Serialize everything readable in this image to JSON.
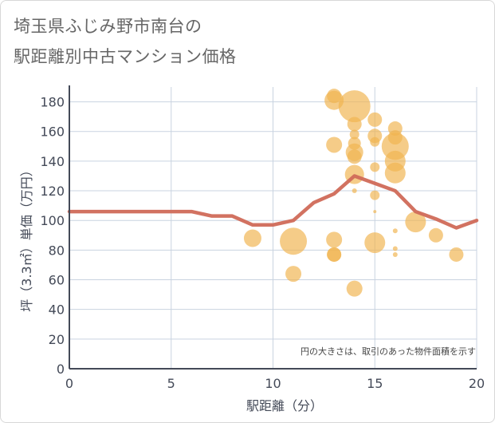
{
  "chart_data": {
    "type": "scatter",
    "title_line1": "埼玉県ふじみ野市南台の",
    "title_line2": "駅距離別中古マンション価格",
    "xlabel": "駅距離（分）",
    "ylabel": "坪（3.3㎡）単価（万円）",
    "note": "円の大きさは、取引のあった物件面積を示す",
    "xlim": [
      0,
      20
    ],
    "ylim": [
      0,
      190
    ],
    "xticks": [
      0,
      5,
      10,
      15,
      20
    ],
    "yticks": [
      0,
      20,
      40,
      60,
      80,
      100,
      120,
      140,
      160,
      180
    ],
    "colors": {
      "bubble": "#f0b450",
      "line": "#d06a58",
      "grid": "#c9d3e0",
      "axis": "#444a58"
    },
    "points": [
      {
        "x": 9,
        "y": 88,
        "size": 11
      },
      {
        "x": 11,
        "y": 86,
        "size": 17
      },
      {
        "x": 11,
        "y": 64,
        "size": 10
      },
      {
        "x": 13,
        "y": 181,
        "size": 12
      },
      {
        "x": 13,
        "y": 184,
        "size": 9
      },
      {
        "x": 13,
        "y": 151,
        "size": 10
      },
      {
        "x": 13,
        "y": 87,
        "size": 10
      },
      {
        "x": 13,
        "y": 77,
        "size": 9
      },
      {
        "x": 13,
        "y": 77,
        "size": 9
      },
      {
        "x": 14,
        "y": 177,
        "size": 20
      },
      {
        "x": 14,
        "y": 165,
        "size": 9
      },
      {
        "x": 14,
        "y": 158,
        "size": 6
      },
      {
        "x": 14,
        "y": 152,
        "size": 8
      },
      {
        "x": 14,
        "y": 146,
        "size": 11
      },
      {
        "x": 14,
        "y": 143,
        "size": 9
      },
      {
        "x": 14,
        "y": 131,
        "size": 12
      },
      {
        "x": 14,
        "y": 120,
        "size": 3
      },
      {
        "x": 14,
        "y": 54,
        "size": 10
      },
      {
        "x": 15,
        "y": 168,
        "size": 9
      },
      {
        "x": 15,
        "y": 157,
        "size": 9
      },
      {
        "x": 15,
        "y": 153,
        "size": 6
      },
      {
        "x": 15,
        "y": 136,
        "size": 6
      },
      {
        "x": 15,
        "y": 117,
        "size": 6
      },
      {
        "x": 15,
        "y": 106,
        "size": 2
      },
      {
        "x": 15,
        "y": 85,
        "size": 13
      },
      {
        "x": 16,
        "y": 162,
        "size": 9
      },
      {
        "x": 16,
        "y": 156,
        "size": 9
      },
      {
        "x": 16,
        "y": 150,
        "size": 17
      },
      {
        "x": 16,
        "y": 140,
        "size": 13
      },
      {
        "x": 16,
        "y": 132,
        "size": 13
      },
      {
        "x": 16,
        "y": 93,
        "size": 3
      },
      {
        "x": 16,
        "y": 81,
        "size": 3
      },
      {
        "x": 16,
        "y": 77,
        "size": 3
      },
      {
        "x": 17,
        "y": 99,
        "size": 13
      },
      {
        "x": 18,
        "y": 90,
        "size": 9
      },
      {
        "x": 19,
        "y": 77,
        "size": 9
      }
    ],
    "line": {
      "x": [
        0,
        1,
        2,
        3,
        4,
        5,
        6,
        7,
        8,
        9,
        10,
        11,
        12,
        13,
        14,
        15,
        16,
        17,
        18,
        19,
        20
      ],
      "y": [
        106,
        106,
        106,
        106,
        106,
        106,
        106,
        103,
        103,
        97,
        97,
        100,
        112,
        118,
        130,
        125,
        120,
        106,
        101,
        95,
        100
      ]
    }
  }
}
